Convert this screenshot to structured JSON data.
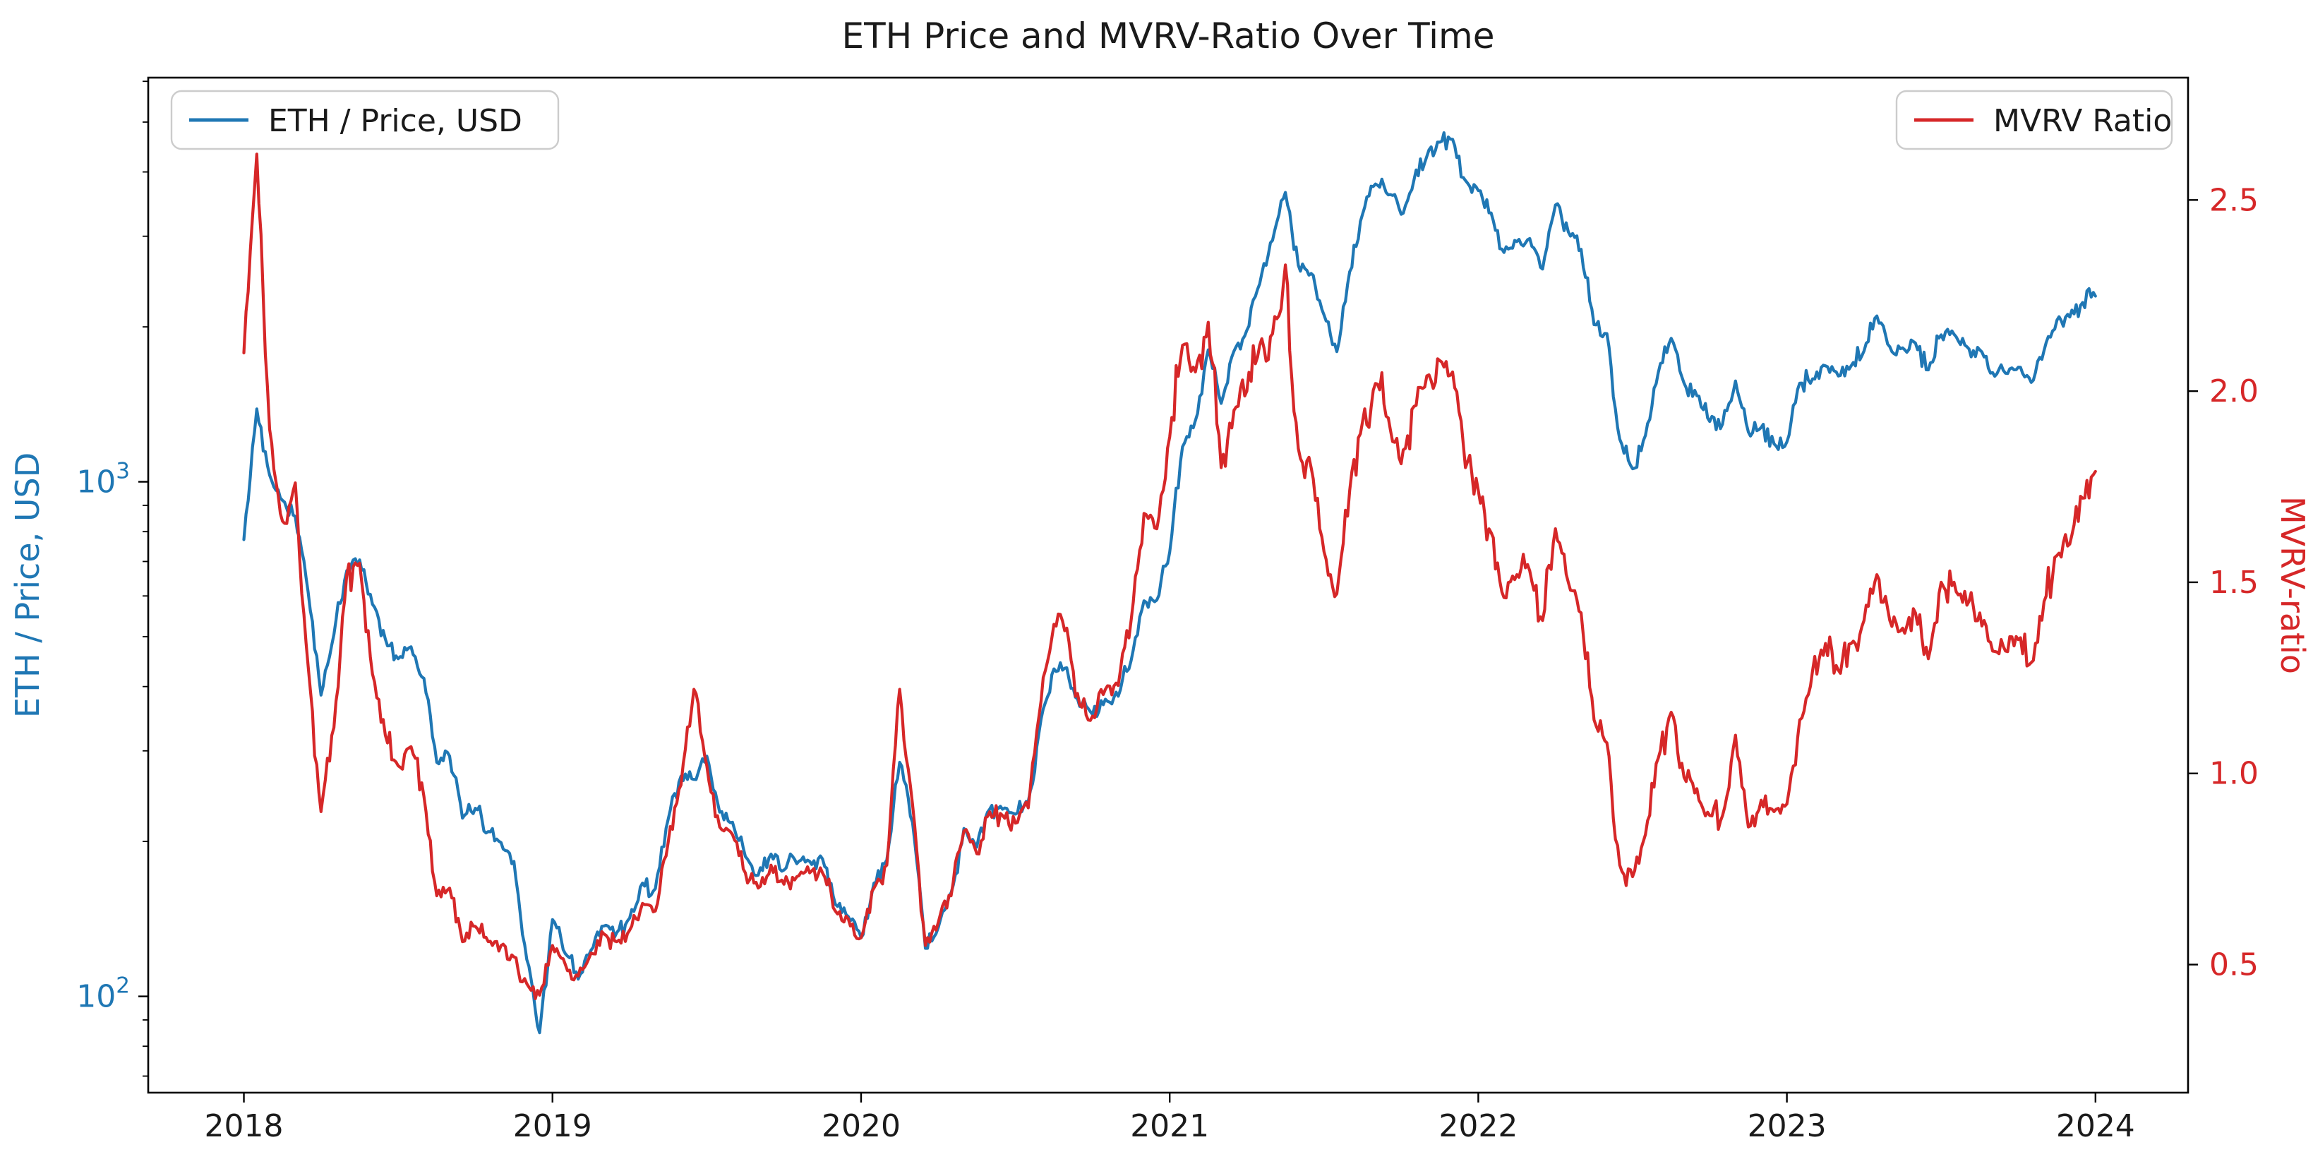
{
  "title": "ETH Price and MVRV-Ratio Over Time",
  "legend_left": {
    "label": "ETH / Price, USD"
  },
  "legend_right": {
    "label": "MVRV Ratio"
  },
  "colors": {
    "price": "#1f77b4",
    "mvrv": "#d62728",
    "spine": "#000000",
    "legend_border": "#cccccc"
  },
  "chart_data": {
    "type": "line",
    "title": "ETH Price and MVRV-Ratio Over Time",
    "x_unit": "decimal_year",
    "x_start": 2018.0,
    "x_step": 0.0416667,
    "x_ticks": [
      2018,
      2019,
      2020,
      2021,
      2022,
      2023,
      2024
    ],
    "x_domain": [
      2017.69,
      2024.3
    ],
    "grid": false,
    "legend_left_pos": "upper left",
    "legend_right_pos": "upper right",
    "y_left": {
      "scale": "log",
      "label": "ETH / Price, USD",
      "ticks": [
        100,
        1000
      ],
      "tick_exponents": [
        2,
        3
      ],
      "range": [
        65,
        6100
      ],
      "color": "#1f77b4"
    },
    "y_right": {
      "scale": "linear",
      "label": "MVRV-ratio",
      "ticks": [
        0.5,
        1.0,
        1.5,
        2.0,
        2.5
      ],
      "range": [
        0.165,
        2.82
      ],
      "color": "#d62728"
    },
    "series": [
      {
        "name": "ETH / Price, USD",
        "axis": "left",
        "color": "#1f77b4",
        "values": [
          772,
          1385,
          1030,
          920,
          856,
          610,
          385,
          505,
          672,
          705,
          578,
          495,
          453,
          478,
          415,
          285,
          293,
          222,
          232,
          209,
          199,
          183,
          118,
          85,
          141,
          121,
          108,
          123,
          137,
          133,
          142,
          166,
          162,
          221,
          268,
          264,
          293,
          228,
          218,
          187,
          172,
          189,
          176,
          181,
          183,
          185,
          151,
          143,
          130,
          166,
          184,
          285,
          218,
          124,
          136,
          159,
          212,
          195,
          231,
          231,
          226,
          239,
          346,
          433,
          435,
          366,
          353,
          378,
          383,
          449,
          587,
          589,
          730,
          1170,
          1315,
          1805,
          1420,
          1795,
          1970,
          2425,
          2945,
          3650,
          2635,
          2540,
          2110,
          1790,
          2560,
          3310,
          3790,
          3610,
          3310,
          3860,
          4290,
          4570,
          4630,
          3850,
          3680,
          3330,
          2790,
          2930,
          2970,
          2590,
          3450,
          3060,
          2830,
          2020,
          1940,
          1210,
          1060,
          1230,
          1630,
          1900,
          1555,
          1470,
          1310,
          1295,
          1570,
          1250,
          1275,
          1185,
          1195,
          1555,
          1585,
          1680,
          1605,
          1680,
          1795,
          2100,
          1830,
          1820,
          1860,
          1650,
          1930,
          1935,
          1830,
          1805,
          1630,
          1625,
          1670,
          1560,
          1800,
          2060,
          2090,
          2230,
          2295
        ]
      },
      {
        "name": "MVRV Ratio",
        "axis": "right",
        "color": "#d62728",
        "values": [
          2.1,
          2.62,
          1.9,
          1.66,
          1.76,
          1.28,
          0.9,
          1.12,
          1.52,
          1.55,
          1.26,
          1.1,
          1.02,
          1.07,
          0.94,
          0.68,
          0.7,
          0.56,
          0.6,
          0.56,
          0.55,
          0.52,
          0.45,
          0.42,
          0.55,
          0.5,
          0.47,
          0.53,
          0.58,
          0.56,
          0.59,
          0.66,
          0.64,
          0.82,
          0.97,
          1.22,
          1.02,
          0.86,
          0.84,
          0.74,
          0.7,
          0.76,
          0.71,
          0.73,
          0.74,
          0.74,
          0.64,
          0.62,
          0.57,
          0.7,
          0.76,
          1.22,
          0.92,
          0.55,
          0.61,
          0.68,
          0.85,
          0.79,
          0.9,
          0.89,
          0.87,
          0.91,
          1.19,
          1.39,
          1.38,
          1.18,
          1.15,
          1.22,
          1.23,
          1.4,
          1.68,
          1.64,
          1.88,
          2.12,
          2.05,
          2.18,
          1.8,
          1.95,
          2.0,
          2.12,
          2.15,
          2.33,
          1.85,
          1.8,
          1.58,
          1.47,
          1.74,
          1.92,
          2.02,
          1.93,
          1.81,
          1.96,
          2.04,
          2.08,
          2.05,
          1.8,
          1.74,
          1.63,
          1.46,
          1.52,
          1.53,
          1.4,
          1.64,
          1.5,
          1.42,
          1.14,
          1.08,
          0.76,
          0.73,
          0.84,
          1.04,
          1.16,
          0.99,
          0.96,
          0.89,
          0.89,
          1.1,
          0.86,
          0.93,
          0.9,
          0.92,
          1.14,
          1.27,
          1.34,
          1.27,
          1.34,
          1.4,
          1.52,
          1.4,
          1.38,
          1.42,
          1.3,
          1.5,
          1.5,
          1.44,
          1.42,
          1.32,
          1.32,
          1.35,
          1.29,
          1.45,
          1.57,
          1.6,
          1.72,
          1.79
        ]
      }
    ]
  }
}
